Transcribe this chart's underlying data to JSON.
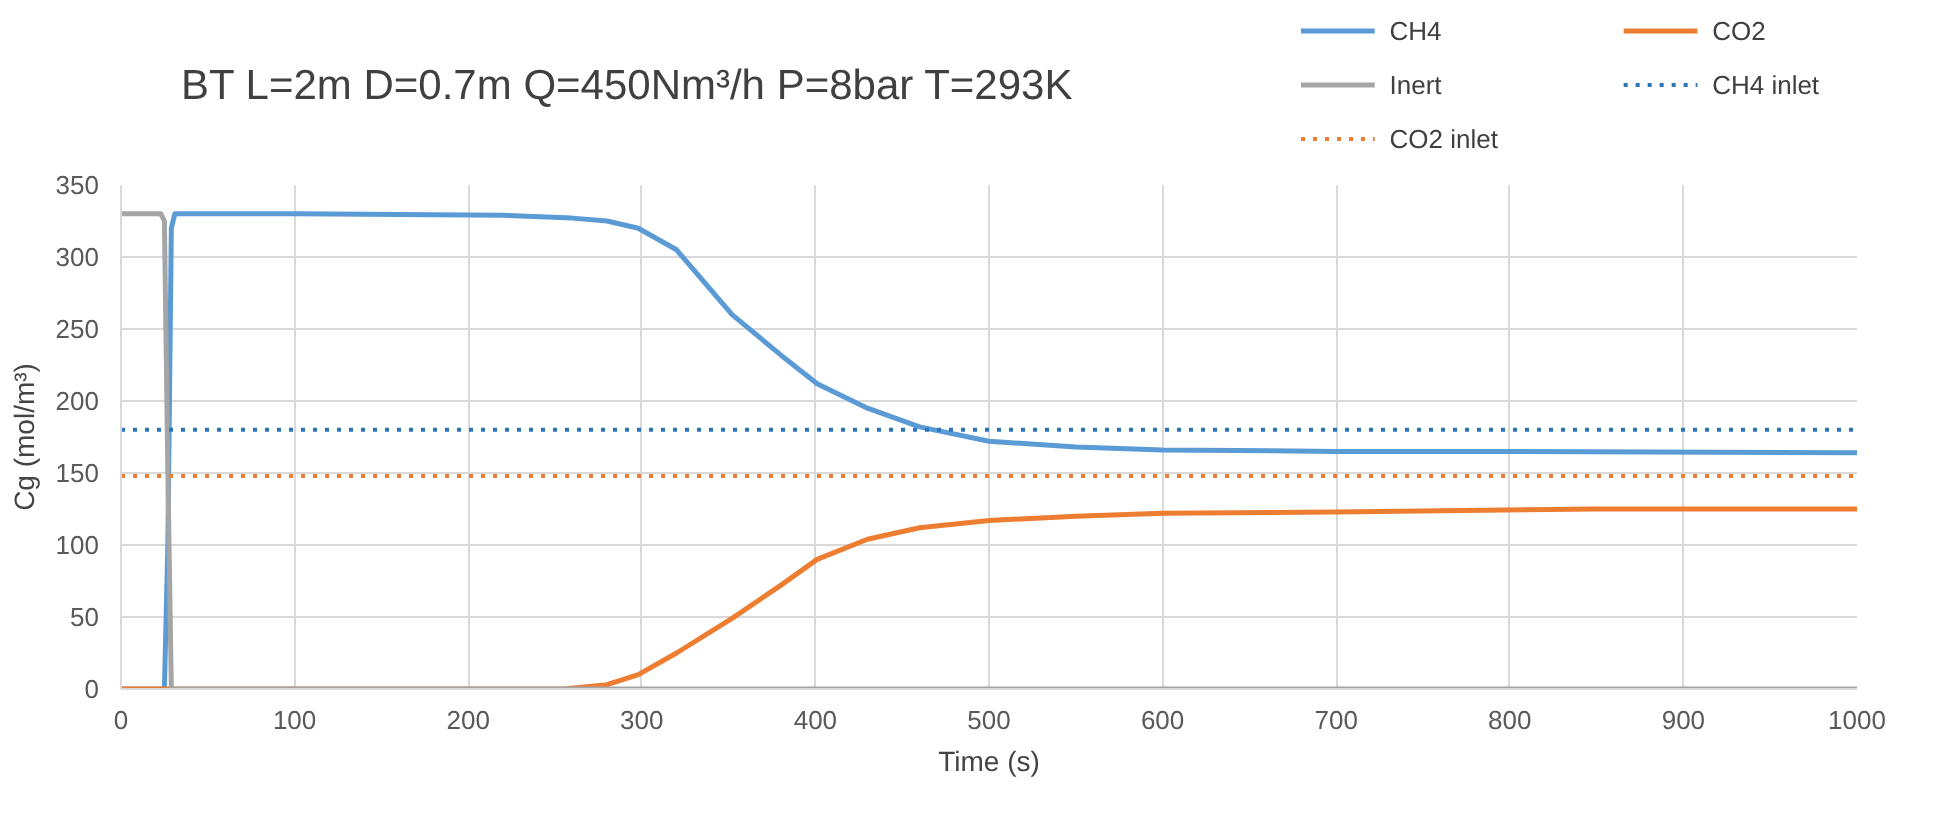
{
  "chart_data": {
    "type": "line",
    "title": "BT L=2m D=0.7m Q=450Nm³/h P=8bar T=293K",
    "xlabel": "Time (s)",
    "ylabel": "Cg (mol/m³)",
    "xlim": [
      0,
      1000
    ],
    "ylim": [
      0,
      350
    ],
    "xticks": [
      0,
      100,
      200,
      300,
      400,
      500,
      600,
      700,
      800,
      900,
      1000
    ],
    "yticks": [
      0,
      50,
      100,
      150,
      200,
      250,
      300,
      350
    ],
    "grid": true,
    "legend": "top right",
    "marker": "none",
    "series": [
      {
        "name": "CH4",
        "color": "#5b9bd5",
        "x": [
          0,
          25,
          27,
          29,
          31,
          100,
          220,
          260,
          280,
          298,
          320,
          352,
          380,
          401,
          430,
          460,
          500,
          550,
          600,
          700,
          800,
          1000
        ],
        "values": [
          0,
          0,
          100,
          320,
          330,
          330,
          329,
          327,
          325,
          320,
          305,
          260,
          232,
          212,
          195,
          182,
          172,
          168,
          166,
          165,
          165,
          164
        ]
      },
      {
        "name": "CO2",
        "color": "#ed7d31",
        "x": [
          0,
          255,
          280,
          298,
          320,
          352,
          380,
          401,
          430,
          460,
          500,
          550,
          600,
          700,
          850,
          1000
        ],
        "values": [
          0,
          0,
          3,
          10,
          25,
          49,
          72,
          90,
          104,
          112,
          117,
          120,
          122,
          123,
          125,
          125
        ]
      },
      {
        "name": "Inert",
        "color": "#a5a5a5",
        "x": [
          0,
          23,
          25,
          27,
          29,
          1000
        ],
        "values": [
          330,
          330,
          325,
          150,
          0,
          0
        ]
      },
      {
        "name": "CH4 inlet",
        "color": "#2e75b6",
        "line_style": "dotted",
        "x": [
          0,
          1000
        ],
        "values": [
          180,
          180
        ]
      },
      {
        "name": "CO2 inlet",
        "color": "#ed7d31",
        "line_style": "dotted",
        "x": [
          0,
          1000
        ],
        "values": [
          148,
          148
        ]
      }
    ]
  }
}
